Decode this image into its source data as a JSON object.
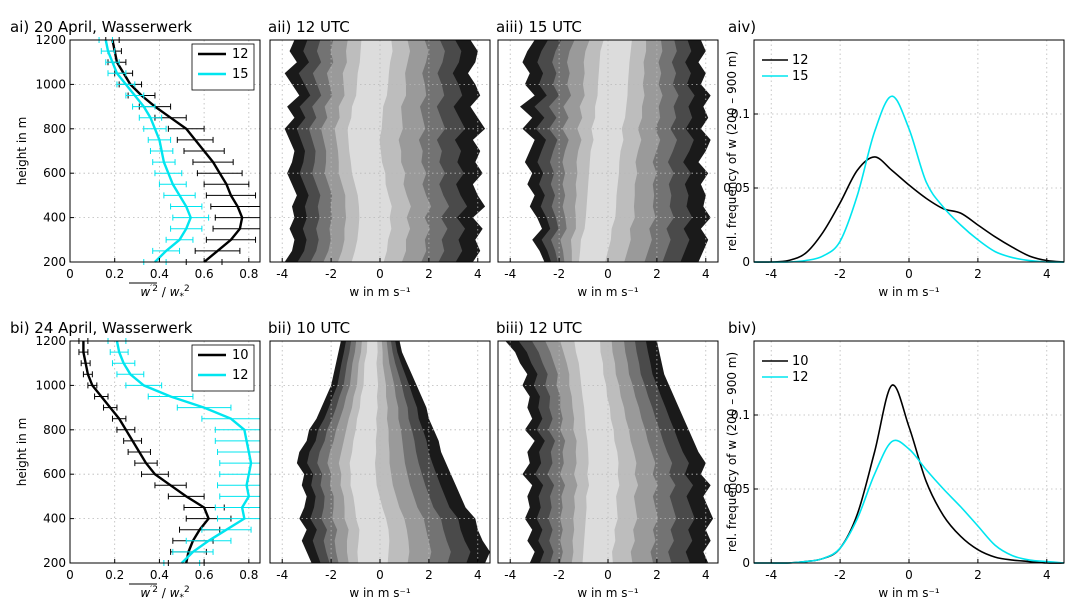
{
  "colors": {
    "black_series": "#000000",
    "cyan_series": "#00e5ef",
    "contour_levels": [
      "#ffffff",
      "#1a1a1a",
      "#4a4a4a",
      "#737373",
      "#9a9a9a",
      "#bdbdbd",
      "#dcdcdc"
    ]
  },
  "rows": [
    {
      "profile": {
        "title": "ai) 20 April, Wasserwerk",
        "ylabel": "height in m",
        "xlabel": "w'² / w*²",
        "xlabel_parts": [
          "w",
          "′2",
          " / ",
          "w",
          "*",
          "2"
        ],
        "legend": [
          "12",
          "15"
        ]
      },
      "contours": [
        {
          "title": "aii) 12 UTC",
          "xlabel": "w  in m s⁻¹"
        },
        {
          "title": "aiii) 15 UTC",
          "xlabel": "w  in m s⁻¹"
        }
      ],
      "pdf": {
        "title": "aiv)",
        "ylabel": "rel. frequency of w (200 – 900 m)",
        "xlabel": "w  in m s⁻¹",
        "legend": [
          "12",
          "15"
        ]
      }
    },
    {
      "profile": {
        "title": "bi) 24 April, Wasserwerk",
        "ylabel": "height in m",
        "xlabel": "w'² / w*²",
        "xlabel_parts": [
          "w",
          "′2",
          " / ",
          "w",
          "*",
          "2"
        ],
        "legend": [
          "10",
          "12"
        ]
      },
      "contours": [
        {
          "title": "bii) 10 UTC",
          "xlabel": "w  in m s⁻¹"
        },
        {
          "title": "biii) 12 UTC",
          "xlabel": "w  in m s⁻¹"
        }
      ],
      "pdf": {
        "title": "biv)",
        "ylabel": "rel. frequency of w (200 – 900 m)",
        "xlabel": "w  in m s⁻¹",
        "legend": [
          "10",
          "12"
        ]
      }
    }
  ],
  "chart_data": [
    {
      "type": "line",
      "title": "ai) 20 April, Wasserwerk",
      "xlabel": "w'² / w*²",
      "ylabel": "height in m",
      "xlim": [
        0,
        0.85
      ],
      "ylim": [
        200,
        1200
      ],
      "xticks": [
        0,
        0.2,
        0.4,
        0.6,
        0.8
      ],
      "yticks": [
        200,
        400,
        600,
        800,
        1000,
        1200
      ],
      "legend_position": "top-right",
      "grid": true,
      "series": [
        {
          "name": "12",
          "color": "#000000",
          "height": [
            200,
            250,
            300,
            350,
            400,
            450,
            500,
            550,
            600,
            650,
            700,
            750,
            800,
            850,
            900,
            950,
            1000,
            1050,
            1100,
            1150,
            1200
          ],
          "value": [
            0.6,
            0.66,
            0.72,
            0.76,
            0.77,
            0.75,
            0.72,
            0.7,
            0.67,
            0.64,
            0.6,
            0.56,
            0.52,
            0.45,
            0.38,
            0.32,
            0.27,
            0.24,
            0.21,
            0.2,
            0.19
          ],
          "error": [
            0.08,
            0.1,
            0.11,
            0.12,
            0.12,
            0.12,
            0.11,
            0.1,
            0.1,
            0.09,
            0.09,
            0.08,
            0.08,
            0.07,
            0.07,
            0.06,
            0.05,
            0.04,
            0.04,
            0.03,
            0.03
          ]
        },
        {
          "name": "15",
          "color": "#00e5ef",
          "height": [
            200,
            250,
            300,
            350,
            400,
            450,
            500,
            550,
            600,
            650,
            700,
            750,
            800,
            850,
            900,
            950,
            1000,
            1050,
            1100,
            1150,
            1200
          ],
          "value": [
            0.38,
            0.43,
            0.49,
            0.52,
            0.54,
            0.52,
            0.49,
            0.46,
            0.44,
            0.42,
            0.41,
            0.4,
            0.38,
            0.36,
            0.33,
            0.29,
            0.25,
            0.21,
            0.19,
            0.17,
            0.16
          ],
          "error": [
            0.05,
            0.06,
            0.06,
            0.07,
            0.08,
            0.07,
            0.07,
            0.06,
            0.06,
            0.05,
            0.05,
            0.05,
            0.05,
            0.05,
            0.05,
            0.04,
            0.04,
            0.04,
            0.03,
            0.03,
            0.03
          ]
        }
      ]
    },
    {
      "type": "heatmap",
      "title": "aii) 12 UTC",
      "xlabel": "w  in m s⁻¹",
      "xlim": [
        -4.5,
        4.5
      ],
      "ylim": [
        200,
        1200
      ],
      "xticks": [
        -4,
        -2,
        0,
        2,
        4
      ],
      "center": [
        -0.6,
        -0.5,
        -0.4,
        -0.3,
        -0.3,
        -0.3,
        -0.4,
        -0.5,
        -0.6,
        -0.7,
        -0.8,
        -0.8,
        -0.8,
        -0.7,
        -0.6,
        -0.5,
        -0.4,
        -0.3,
        -0.3,
        -0.2,
        -0.2
      ],
      "left": [
        -3.9,
        -3.6,
        -3.5,
        -3.7,
        -3.5,
        -3.6,
        -3.4,
        -3.6,
        -3.8,
        -3.6,
        -3.5,
        -3.7,
        -3.9,
        -3.5,
        -3.8,
        -3.3,
        -3.6,
        -3.9,
        -3.4,
        -3.7,
        -3.5
      ],
      "right": [
        3.8,
        4.1,
        3.9,
        4.2,
        3.8,
        4.3,
        4.0,
        3.8,
        4.2,
        3.9,
        4.1,
        3.8,
        4.3,
        4.0,
        3.7,
        4.1,
        3.9,
        3.6,
        3.9,
        4.0,
        3.7
      ]
    },
    {
      "type": "heatmap",
      "title": "aiii) 15 UTC",
      "xlabel": "w  in m s⁻¹",
      "xlim": [
        -4.5,
        4.5
      ],
      "ylim": [
        200,
        1200
      ],
      "xticks": [
        -4,
        -2,
        0,
        2,
        4
      ],
      "center": [
        -0.9,
        -0.8,
        -0.7,
        -0.6,
        -0.5,
        -0.4,
        -0.4,
        -0.3,
        -0.3,
        -0.2,
        -0.2,
        -0.1,
        -0.1,
        0.0,
        0.1,
        0.1,
        0.2,
        0.2,
        0.3,
        0.3,
        0.4
      ],
      "left": [
        -2.6,
        -2.8,
        -3.1,
        -2.7,
        -2.9,
        -3.2,
        -3.0,
        -3.3,
        -3.1,
        -3.4,
        -3.2,
        -3.0,
        -3.5,
        -3.1,
        -3.6,
        -3.0,
        -3.4,
        -3.2,
        -3.5,
        -3.3,
        -3.0
      ],
      "right": [
        3.7,
        3.9,
        4.1,
        3.8,
        4.2,
        3.9,
        4.0,
        3.8,
        4.1,
        3.7,
        4.0,
        4.2,
        3.8,
        4.1,
        3.9,
        4.2,
        3.8,
        4.0,
        3.7,
        4.0,
        3.8
      ]
    },
    {
      "type": "line",
      "title": "aiv)",
      "xlabel": "w  in m s⁻¹",
      "ylabel": "rel. frequency of w (200 – 900 m)",
      "xlim": [
        -4.5,
        4.5
      ],
      "ylim": [
        0,
        0.15
      ],
      "xticks": [
        -4,
        -2,
        0,
        2,
        4
      ],
      "yticks": [
        0,
        0.05,
        0.1
      ],
      "legend_position": "top-left",
      "grid": true,
      "x": [
        -4.5,
        -4,
        -3.5,
        -3,
        -2.5,
        -2,
        -1.5,
        -1,
        -0.5,
        0,
        0.5,
        1,
        1.5,
        2,
        2.5,
        3,
        3.5,
        4,
        4.5
      ],
      "series": [
        {
          "name": "12",
          "color": "#000000",
          "values": [
            0,
            0,
            0.001,
            0.006,
            0.02,
            0.04,
            0.062,
            0.071,
            0.062,
            0.052,
            0.043,
            0.036,
            0.033,
            0.025,
            0.017,
            0.01,
            0.004,
            0.001,
            0
          ]
        },
        {
          "name": "15",
          "color": "#00e5ef",
          "values": [
            0,
            0,
            0,
            0.001,
            0.004,
            0.014,
            0.045,
            0.088,
            0.112,
            0.09,
            0.054,
            0.037,
            0.025,
            0.015,
            0.007,
            0.003,
            0.001,
            0,
            0
          ]
        }
      ]
    },
    {
      "type": "line",
      "title": "bi) 24 April, Wasserwerk",
      "xlabel": "w'² / w*²",
      "ylabel": "height in m",
      "xlim": [
        0,
        0.85
      ],
      "ylim": [
        200,
        1200
      ],
      "xticks": [
        0,
        0.2,
        0.4,
        0.6,
        0.8
      ],
      "yticks": [
        200,
        400,
        600,
        800,
        1000,
        1200
      ],
      "legend_position": "top-right",
      "grid": true,
      "series": [
        {
          "name": "10",
          "color": "#000000",
          "height": [
            200,
            250,
            300,
            350,
            400,
            450,
            500,
            550,
            600,
            650,
            700,
            750,
            800,
            850,
            900,
            950,
            1000,
            1050,
            1100,
            1150,
            1200
          ],
          "value": [
            0.52,
            0.53,
            0.55,
            0.58,
            0.62,
            0.6,
            0.52,
            0.45,
            0.38,
            0.34,
            0.31,
            0.28,
            0.25,
            0.22,
            0.18,
            0.14,
            0.1,
            0.08,
            0.07,
            0.06,
            0.06
          ],
          "error": [
            0.08,
            0.08,
            0.09,
            0.09,
            0.1,
            0.09,
            0.08,
            0.07,
            0.06,
            0.05,
            0.05,
            0.04,
            0.04,
            0.03,
            0.03,
            0.03,
            0.02,
            0.02,
            0.02,
            0.02,
            0.02
          ]
        },
        {
          "name": "12",
          "color": "#00e5ef",
          "height": [
            200,
            250,
            300,
            350,
            400,
            450,
            500,
            550,
            600,
            650,
            700,
            750,
            800,
            850,
            900,
            950,
            1000,
            1050,
            1100,
            1150,
            1200
          ],
          "value": [
            0.5,
            0.55,
            0.62,
            0.7,
            0.78,
            0.77,
            0.8,
            0.79,
            0.8,
            0.81,
            0.8,
            0.79,
            0.78,
            0.72,
            0.6,
            0.45,
            0.33,
            0.27,
            0.24,
            0.22,
            0.21
          ],
          "error": [
            0.08,
            0.09,
            0.1,
            0.11,
            0.12,
            0.12,
            0.13,
            0.13,
            0.13,
            0.14,
            0.14,
            0.14,
            0.13,
            0.13,
            0.12,
            0.1,
            0.08,
            0.06,
            0.05,
            0.04,
            0.04
          ]
        }
      ]
    },
    {
      "type": "heatmap",
      "title": "bii) 10 UTC",
      "xlabel": "w  in m s⁻¹",
      "xlim": [
        -4.5,
        4.5
      ],
      "ylim": [
        200,
        1200
      ],
      "xticks": [
        -4,
        -2,
        0,
        2,
        4
      ],
      "center": [
        -0.5,
        -0.5,
        -0.4,
        -0.4,
        -0.5,
        -0.6,
        -0.7,
        -0.8,
        -0.8,
        -0.8,
        -0.7,
        -0.7,
        -0.6,
        -0.6,
        -0.5,
        -0.5,
        -0.4,
        -0.4,
        -0.4,
        -0.3,
        -0.3
      ],
      "left": [
        -2.8,
        -3.0,
        -3.2,
        -3.0,
        -3.3,
        -3.1,
        -3.0,
        -3.2,
        -3.1,
        -3.4,
        -3.3,
        -3.0,
        -2.9,
        -2.6,
        -2.4,
        -2.2,
        -2.0,
        -1.9,
        -1.8,
        -1.7,
        -1.6
      ],
      "right": [
        4.3,
        4.5,
        4.2,
        4.0,
        3.9,
        3.5,
        3.3,
        3.1,
        2.9,
        2.7,
        2.5,
        2.4,
        2.2,
        2.0,
        1.9,
        1.7,
        1.5,
        1.3,
        1.1,
        0.9,
        0.8
      ]
    },
    {
      "type": "heatmap",
      "title": "biii) 12 UTC",
      "xlabel": "w  in m s⁻¹",
      "xlim": [
        -4.5,
        4.5
      ],
      "ylim": [
        200,
        1200
      ],
      "xticks": [
        -4,
        -2,
        0,
        2,
        4
      ],
      "center": [
        -0.6,
        -0.6,
        -0.5,
        -0.5,
        -0.4,
        -0.4,
        -0.4,
        -0.3,
        -0.3,
        -0.3,
        -0.3,
        -0.4,
        -0.4,
        -0.5,
        -0.5,
        -0.6,
        -0.6,
        -0.7,
        -0.7,
        -0.8,
        -0.8
      ],
      "left": [
        -3.2,
        -3.0,
        -3.3,
        -3.1,
        -3.4,
        -3.2,
        -3.3,
        -3.1,
        -3.5,
        -3.2,
        -3.3,
        -3.0,
        -3.4,
        -3.1,
        -3.3,
        -3.2,
        -3.5,
        -3.3,
        -3.6,
        -3.8,
        -4.2
      ],
      "right": [
        4.1,
        3.9,
        4.2,
        4.0,
        4.3,
        4.1,
        3.9,
        4.2,
        3.8,
        4.0,
        3.7,
        3.5,
        3.3,
        3.1,
        2.9,
        2.7,
        2.5,
        2.3,
        2.2,
        2.1,
        2.0
      ]
    },
    {
      "type": "line",
      "title": "biv)",
      "xlabel": "w  in m s⁻¹",
      "ylabel": "rel. frequency of w (200 – 900 m)",
      "xlim": [
        -4.5,
        4.5
      ],
      "ylim": [
        0,
        0.15
      ],
      "xticks": [
        -4,
        -2,
        0,
        2,
        4
      ],
      "yticks": [
        0,
        0.05,
        0.1
      ],
      "legend_position": "top-left",
      "grid": true,
      "x": [
        -4.5,
        -4,
        -3.5,
        -3,
        -2.5,
        -2,
        -1.5,
        -1,
        -0.5,
        0,
        0.5,
        1,
        1.5,
        2,
        2.5,
        3,
        3.5,
        4,
        4.5
      ],
      "series": [
        {
          "name": "10",
          "color": "#000000",
          "values": [
            0,
            0,
            0,
            0.001,
            0.003,
            0.01,
            0.033,
            0.075,
            0.12,
            0.092,
            0.055,
            0.032,
            0.018,
            0.009,
            0.004,
            0.002,
            0.001,
            0,
            0
          ]
        },
        {
          "name": "12",
          "color": "#00e5ef",
          "values": [
            0,
            0,
            0,
            0.001,
            0.003,
            0.01,
            0.03,
            0.06,
            0.082,
            0.077,
            0.063,
            0.05,
            0.038,
            0.025,
            0.012,
            0.005,
            0.002,
            0.001,
            0
          ]
        }
      ]
    }
  ]
}
